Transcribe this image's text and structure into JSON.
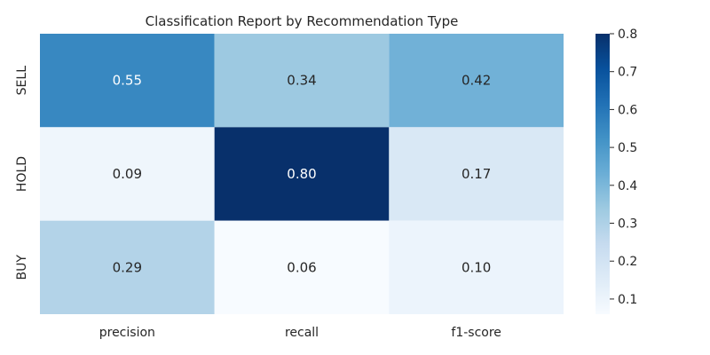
{
  "chart_data": {
    "type": "heatmap",
    "title": "Classification Report by Recommendation Type",
    "x_categories": [
      "precision",
      "recall",
      "f1-score"
    ],
    "y_categories": [
      "SELL",
      "HOLD",
      "BUY"
    ],
    "values": [
      [
        0.55,
        0.34,
        0.42
      ],
      [
        0.09,
        0.8,
        0.17
      ],
      [
        0.29,
        0.06,
        0.1
      ]
    ],
    "value_format": "0.00",
    "colormap": "Blues",
    "colorbar": {
      "vmin": 0.06,
      "vmax": 0.8,
      "ticks": [
        0.1,
        0.2,
        0.3,
        0.4,
        0.5,
        0.6,
        0.7,
        0.8
      ]
    },
    "xlabel": "",
    "ylabel": "",
    "grid": false
  }
}
